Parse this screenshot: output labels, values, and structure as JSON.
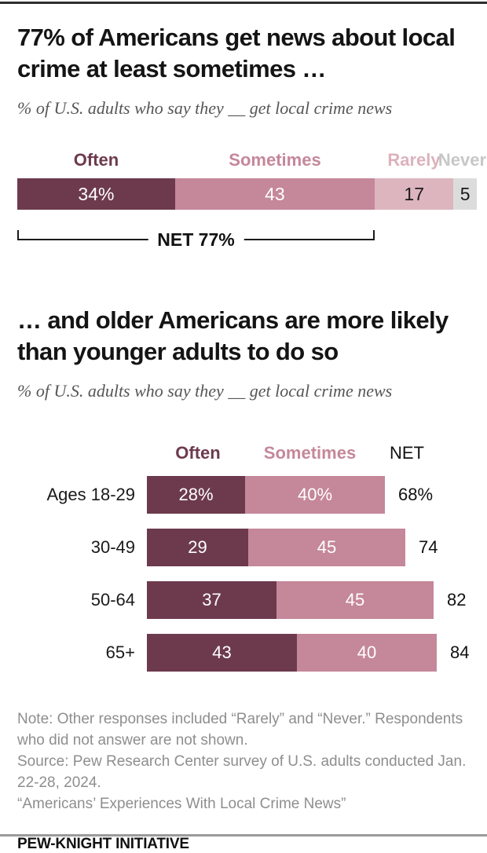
{
  "page": {
    "section1": {
      "title": "77% of Americans get news about local crime at least sometimes …",
      "subtitle": "% of U.S. adults who say they __ get local crime news"
    },
    "section2": {
      "title": "… and older Americans are more likely than younger adults to do so",
      "subtitle": "% of U.S. adults who say they __ get local crime news"
    },
    "footer": {
      "note": "Note: Other responses included “Rarely” and “Never.” Respondents who did not answer are not shown.",
      "source": "Source: Pew Research Center survey of U.S. adults conducted Jan. 22-28, 2024.",
      "report": "“Americans’ Experiences With Local Crime News”",
      "brand": "PEW-KNIGHT INITIATIVE"
    }
  },
  "chart_data": [
    {
      "type": "bar",
      "variant": "horizontal-stacked",
      "title": "77% of Americans get news about local crime at least sometimes …",
      "subtitle": "% of U.S. adults who say they __ get local crime news",
      "categories": [
        "Often",
        "Sometimes",
        "Rarely",
        "Never"
      ],
      "values": [
        34,
        43,
        17,
        5
      ],
      "value_labels": [
        "34%",
        "43",
        "17",
        "5"
      ],
      "colors": [
        "#6d3a4d",
        "#c5879a",
        "#ddb5bf",
        "#dcdcdc"
      ],
      "net": {
        "label": "NET 77%",
        "value": 77,
        "spans": [
          "Often",
          "Sometimes"
        ]
      }
    },
    {
      "type": "bar",
      "variant": "horizontal-stacked-by-group",
      "categories": [
        "Ages 18-29",
        "30-49",
        "50-64",
        "65+"
      ],
      "series": [
        {
          "name": "Often",
          "color": "#6d3a4d",
          "values": [
            28,
            29,
            37,
            43
          ]
        },
        {
          "name": "Sometimes",
          "color": "#c5879a",
          "values": [
            40,
            45,
            45,
            40
          ]
        }
      ],
      "value_labels": [
        [
          "28%",
          "40%"
        ],
        [
          "29",
          "45"
        ],
        [
          "37",
          "45"
        ],
        [
          "43",
          "40"
        ]
      ],
      "net_header": "NET",
      "net_values": [
        "68%",
        "74",
        "82",
        "84"
      ]
    }
  ]
}
